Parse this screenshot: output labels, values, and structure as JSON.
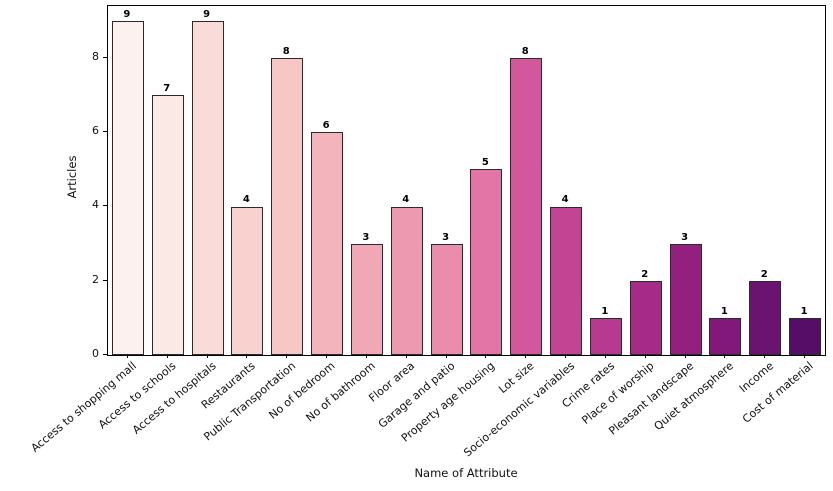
{
  "chart_data": {
    "type": "bar",
    "title": "",
    "xlabel": "Name of Attribute",
    "ylabel": "Articles",
    "ylim": [
      0,
      9.4
    ],
    "yticks": [
      0,
      2,
      4,
      6,
      8
    ],
    "grid": false,
    "legend_position": "none",
    "categories": [
      "Access to shopping mall",
      "Access to schools",
      "Access to hospitals",
      "Restaurants",
      "Public Transportation",
      "No of bedroom",
      "No of bathroom",
      "Floor area",
      "Garage and patio",
      "Property age housing",
      "Lot size",
      "Socio-economic variables",
      "Crime rates",
      "Place of worship",
      "Pleasant landscape",
      "Quiet atmosphere",
      "Income",
      "Cost of material"
    ],
    "values": [
      9,
      7,
      9,
      4,
      8,
      6,
      3,
      4,
      3,
      5,
      8,
      4,
      1,
      2,
      3,
      1,
      2,
      1
    ],
    "value_labels": [
      "9",
      "7",
      "9",
      "4",
      "8",
      "6",
      "3",
      "4",
      "3",
      "5",
      "8",
      "4",
      "1",
      "2",
      "3",
      "1",
      "2",
      "1"
    ],
    "bar_colors": [
      "#fcf1ef",
      "#fbe9e6",
      "#f9dcda",
      "#f8d2cf",
      "#f6c7c4",
      "#f3b5bb",
      "#f0a8b6",
      "#ed9ab0",
      "#ea8cab",
      "#e275a5",
      "#d3589b",
      "#c34493",
      "#b63b90",
      "#a52b87",
      "#931f7e",
      "#82197a",
      "#6b1371",
      "#560d68"
    ],
    "bar_edge_color": "#2b2b2b",
    "axis_color": "#000000",
    "text_color": "#111111",
    "background_color": "#ffffff"
  }
}
